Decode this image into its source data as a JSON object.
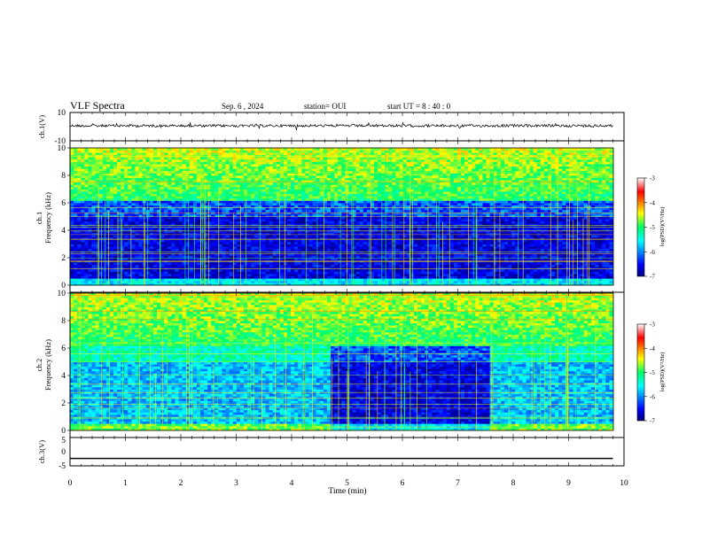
{
  "header": {
    "title": "VLF  Spectra",
    "date": "Sep. 6  , 2024",
    "station": "station= OUI",
    "start": "start  UT  =   8  : 40 : 0"
  },
  "chart_data": [
    {
      "type": "line",
      "panel": "ch1-waveform",
      "ylabel": "ch.1(V)",
      "ylim": [
        -10,
        10
      ],
      "yticks": [
        "10",
        "-10"
      ],
      "xlim": [
        0,
        10
      ],
      "baseline_value": 0
    },
    {
      "type": "heatmap",
      "panel": "ch1-spectrogram",
      "ylabel": "ch.1",
      "ylabel2": "Frequency  (kHz)",
      "xlim": [
        0,
        10
      ],
      "ylim": [
        0,
        10
      ],
      "yticks": [
        "0",
        "2",
        "4",
        "6",
        "8",
        "10"
      ],
      "colorbar": {
        "label": "log(PSD)(V²/Hz)",
        "ticks": [
          "-3",
          "-4",
          "-5",
          "-6",
          "-7"
        ],
        "range": [
          -7,
          -3
        ]
      }
    },
    {
      "type": "heatmap",
      "panel": "ch2-spectrogram",
      "ylabel": "ch.2",
      "ylabel2": "Frequency  (kHz)",
      "xlim": [
        0,
        10
      ],
      "ylim": [
        0,
        10
      ],
      "yticks": [
        "0",
        "2",
        "4",
        "6",
        "8",
        "10"
      ],
      "colorbar": {
        "label": "log(PSD)(V²/Hz)",
        "ticks": [
          "-3",
          "-4",
          "-5",
          "-6",
          "-7"
        ],
        "range": [
          -7,
          -3
        ]
      }
    },
    {
      "type": "line",
      "panel": "ch3-waveform",
      "ylabel": "ch.3(V)",
      "ylim": [
        -5,
        5
      ],
      "yticks": [
        "5",
        "0",
        "-5"
      ],
      "xlim": [
        0,
        10
      ],
      "level": -2.4,
      "xlabel": "Time  (min)",
      "xticks": [
        "0",
        "1",
        "2",
        "3",
        "4",
        "5",
        "6",
        "7",
        "8",
        "9",
        "10"
      ]
    }
  ]
}
